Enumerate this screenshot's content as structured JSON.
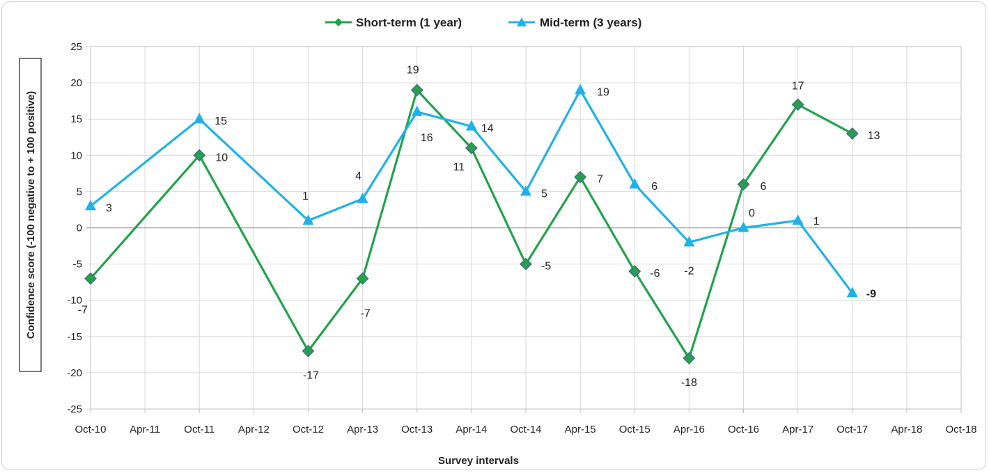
{
  "chart_data": {
    "type": "line",
    "xlabel": "Survey intervals",
    "ylabel": "Confidence score  (-100 negative to + 100 positive)",
    "ylim": [
      -25,
      25
    ],
    "y_ticks": [
      25,
      20,
      15,
      10,
      5,
      0,
      -5,
      -10,
      -15,
      -20,
      -25
    ],
    "categories": [
      "Oct-10",
      "Apr-11",
      "Oct-11",
      "Apr-12",
      "Oct-12",
      "Apr-13",
      "Oct-13",
      "Apr-14",
      "Oct-14",
      "Apr-15",
      "Oct-15",
      "Apr-16",
      "Oct-16",
      "Apr-17",
      "Oct-17",
      "Apr-18",
      "Oct-18"
    ],
    "grid": "vertical and horizontal",
    "legend_position": "top-center",
    "series": [
      {
        "name": "Short-term (1 year)",
        "color": "#22a34a",
        "marker": "diamond",
        "points": [
          {
            "x": "Oct-10",
            "y": -7,
            "label": "-7"
          },
          {
            "x": "Oct-11",
            "y": 10,
            "label": "10"
          },
          {
            "x": "Oct-12",
            "y": -17,
            "label": "-17"
          },
          {
            "x": "Apr-13",
            "y": -7,
            "label": "-7"
          },
          {
            "x": "Oct-13",
            "y": 19,
            "label": "19"
          },
          {
            "x": "Apr-14",
            "y": 11,
            "label": "11"
          },
          {
            "x": "Oct-14",
            "y": -5,
            "label": "-5"
          },
          {
            "x": "Apr-15",
            "y": 7,
            "label": "7"
          },
          {
            "x": "Oct-15",
            "y": -6,
            "label": "-6"
          },
          {
            "x": "Apr-16",
            "y": -18,
            "label": "-18"
          },
          {
            "x": "Oct-16",
            "y": 6,
            "label": "6"
          },
          {
            "x": "Apr-17",
            "y": 17,
            "label": "17"
          },
          {
            "x": "Oct-17",
            "y": 13,
            "label": "13"
          }
        ]
      },
      {
        "name": "Mid-term (3 years)",
        "color": "#1fb2ea",
        "marker": "triangle",
        "points": [
          {
            "x": "Oct-10",
            "y": 3,
            "label": "3"
          },
          {
            "x": "Oct-11",
            "y": 15,
            "label": "15"
          },
          {
            "x": "Oct-12",
            "y": 1,
            "label": "1"
          },
          {
            "x": "Apr-13",
            "y": 4,
            "label": "4"
          },
          {
            "x": "Oct-13",
            "y": 16,
            "label": "16"
          },
          {
            "x": "Apr-14",
            "y": 14,
            "label": "14"
          },
          {
            "x": "Oct-14",
            "y": 5,
            "label": "5"
          },
          {
            "x": "Apr-15",
            "y": 19,
            "label": "19"
          },
          {
            "x": "Oct-15",
            "y": 6,
            "label": "6"
          },
          {
            "x": "Apr-16",
            "y": -2,
            "label": "-2"
          },
          {
            "x": "Oct-16",
            "y": 0,
            "label": "0"
          },
          {
            "x": "Apr-17",
            "y": 1,
            "label": "1"
          },
          {
            "x": "Oct-17",
            "y": -9,
            "label": "-9",
            "label_color": "#ff2020",
            "label_bold": true
          }
        ]
      }
    ]
  }
}
